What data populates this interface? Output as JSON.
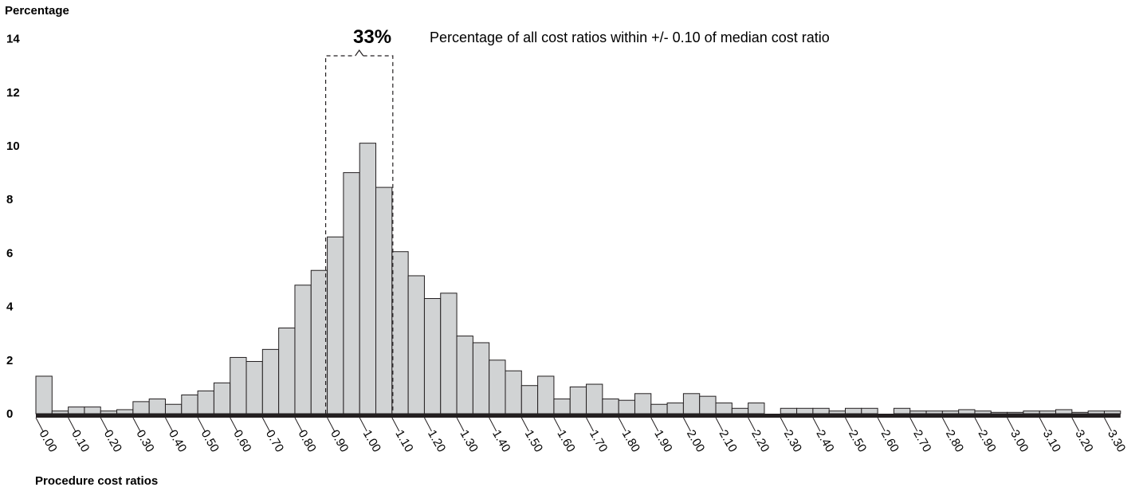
{
  "chart_data": {
    "type": "bar",
    "ylabel": "Percentage",
    "xlabel": "Procedure cost ratios",
    "ylim": [
      0,
      14
    ],
    "yticks": [
      "0",
      "2",
      "4",
      "6",
      "8",
      "10",
      "12",
      "14"
    ],
    "xticks": [
      "0.00",
      "0.10",
      "0.20",
      "0.30",
      "0.40",
      "0.50",
      "0.60",
      "0.70",
      "0.80",
      "0.90",
      "1.00",
      "1.10",
      "1.20",
      "1.30",
      "1.40",
      "1.50",
      "1.60",
      "1.70",
      "1.80",
      "1.90",
      "2.00",
      "2.10",
      "2.20",
      "2.30",
      "2.40",
      "2.50",
      "2.60",
      "2.70",
      "2.80",
      "2.90",
      "3.00",
      "3.10",
      "3.20",
      "3.30"
    ],
    "bin_width": 0.05,
    "bin_starts": [
      0.0,
      0.05,
      0.1,
      0.15,
      0.2,
      0.25,
      0.3,
      0.35,
      0.4,
      0.45,
      0.5,
      0.55,
      0.6,
      0.65,
      0.7,
      0.75,
      0.8,
      0.85,
      0.9,
      0.95,
      1.0,
      1.05,
      1.1,
      1.15,
      1.2,
      1.25,
      1.3,
      1.35,
      1.4,
      1.45,
      1.5,
      1.55,
      1.6,
      1.65,
      1.7,
      1.75,
      1.8,
      1.85,
      1.9,
      1.95,
      2.0,
      2.05,
      2.1,
      2.15,
      2.2,
      2.25,
      2.3,
      2.35,
      2.4,
      2.45,
      2.5,
      2.55,
      2.6,
      2.65,
      2.7,
      2.75,
      2.8,
      2.85,
      2.9,
      2.95,
      3.0,
      3.05,
      3.1,
      3.15,
      3.2,
      3.25,
      3.3
    ],
    "values": [
      1.4,
      0.1,
      0.25,
      0.25,
      0.1,
      0.15,
      0.45,
      0.55,
      0.35,
      0.7,
      0.85,
      1.15,
      2.1,
      1.95,
      2.4,
      3.2,
      4.8,
      5.35,
      6.6,
      9.0,
      10.1,
      8.45,
      6.05,
      5.15,
      4.3,
      4.5,
      2.9,
      2.65,
      2.0,
      1.6,
      1.05,
      1.4,
      0.55,
      1.0,
      1.1,
      0.55,
      0.5,
      0.75,
      0.35,
      0.4,
      0.75,
      0.65,
      0.4,
      0.2,
      0.4,
      0.0,
      0.2,
      0.2,
      0.2,
      0.1,
      0.2,
      0.2,
      0.0,
      0.2,
      0.1,
      0.1,
      0.1,
      0.15,
      0.1,
      0.05,
      0.05,
      0.1,
      0.1,
      0.15,
      0.05,
      0.1,
      0.1
    ],
    "annotation": {
      "percent": "33%",
      "text": "Percentage of all cost ratios within +/- 0.10 of median cost ratio",
      "range": [
        0.9,
        1.1
      ]
    },
    "colors": {
      "bar_fill": "#d1d3d4",
      "bar_stroke": "#231f20",
      "axis": "#231f20"
    }
  }
}
